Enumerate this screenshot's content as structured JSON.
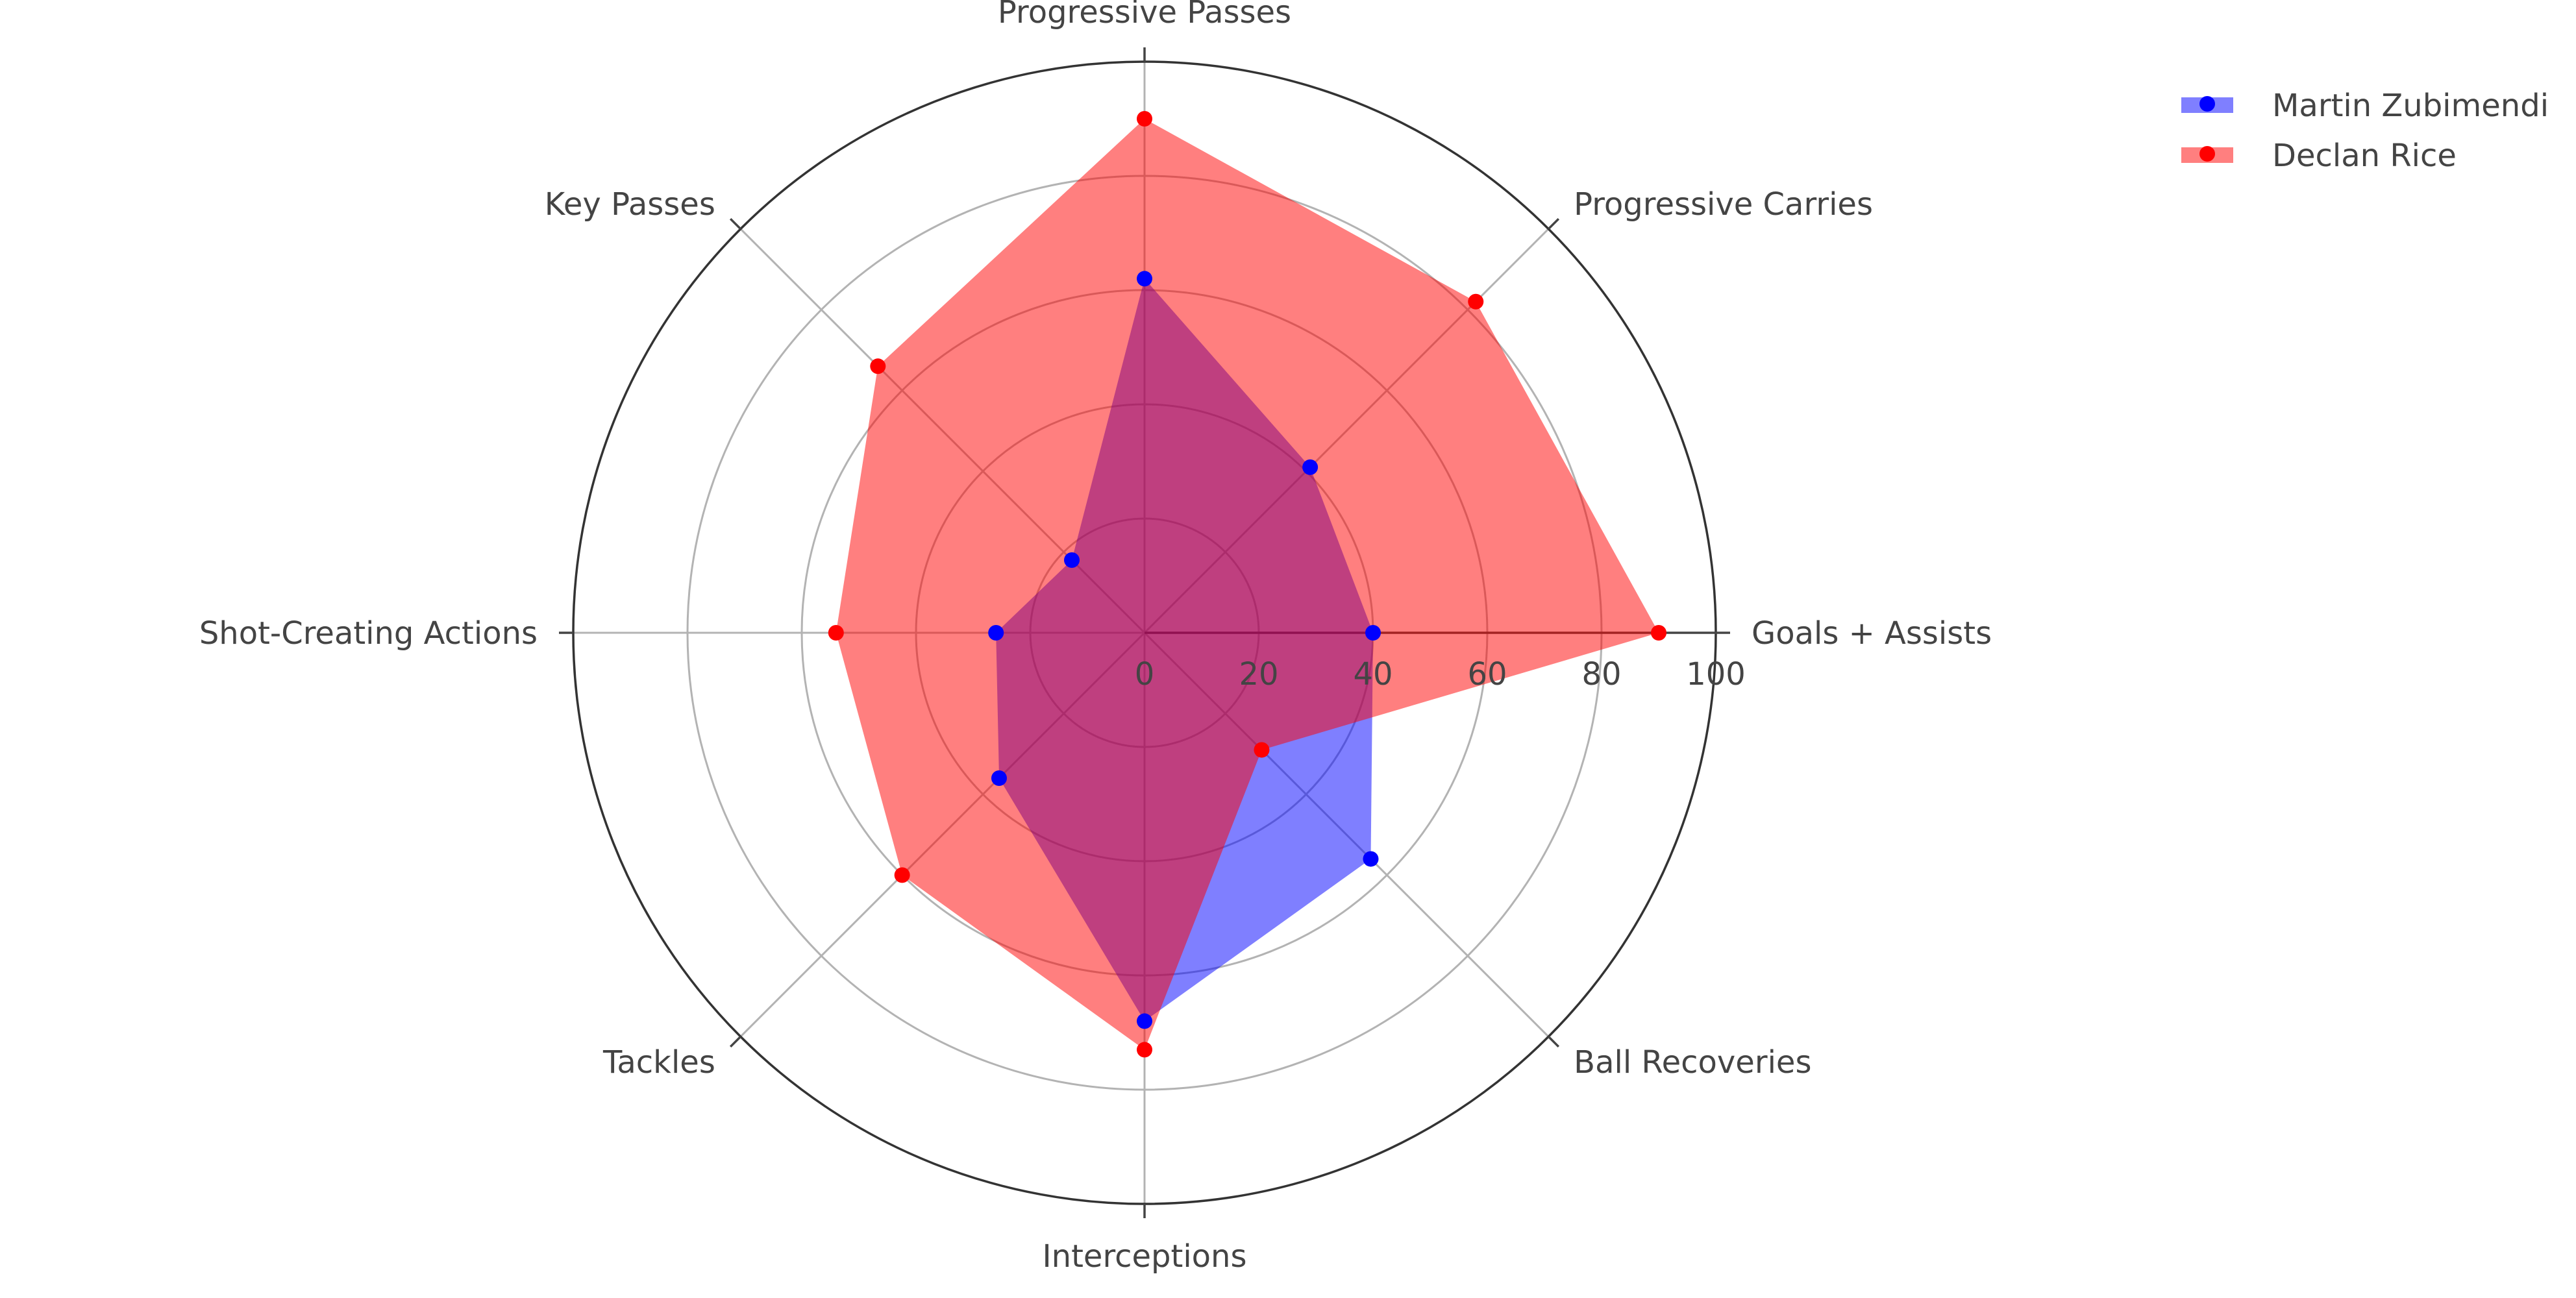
{
  "chart_data": {
    "type": "radar",
    "title": "",
    "categories": [
      "Goals + Assists",
      "Progressive Carries",
      "Progressive Passes",
      "Key Passes",
      "Shot-Creating Actions",
      "Tackles",
      "Interceptions",
      "Ball Recoveries"
    ],
    "radial_ticks": [
      "0",
      "20",
      "40",
      "60",
      "80",
      "100"
    ],
    "rmin": 0,
    "rmax": 100,
    "grid": true,
    "legend_position": "top-right",
    "series": [
      {
        "name": "Martin Zubimendi",
        "values": [
          40,
          41,
          62,
          18,
          26,
          36,
          68,
          56
        ],
        "color": "#0000ff",
        "fill": "#0000ff"
      },
      {
        "name": "Declan Rice",
        "values": [
          90,
          82,
          90,
          66,
          54,
          60,
          73,
          29
        ],
        "color": "#ff0000",
        "fill": "#ff0000"
      }
    ]
  }
}
